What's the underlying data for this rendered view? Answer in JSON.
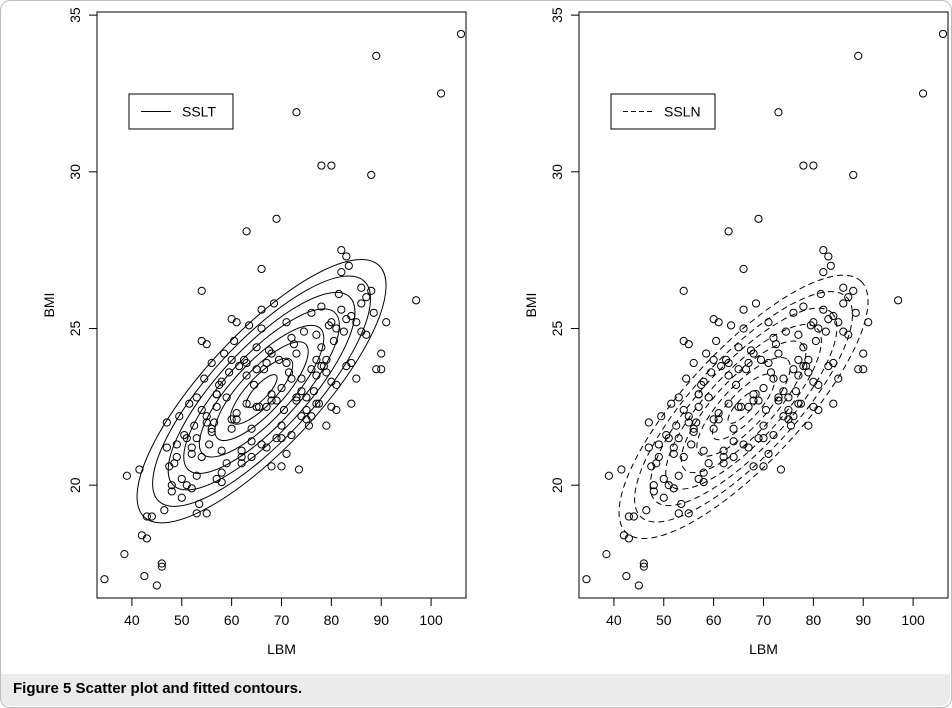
{
  "caption": "Figure 5 Scatter plot and fitted contours.",
  "colors": {
    "ink": "#000000",
    "caption_bg": "#ebebeb",
    "frame": "#bdbdbd"
  },
  "chart_data": [
    {
      "type": "scatter",
      "title": "",
      "xlabel": "LBM",
      "ylabel": "BMI",
      "xlim": [
        33,
        107
      ],
      "ylim": [
        16.4,
        35.1
      ],
      "xticks": [
        "40",
        "50",
        "60",
        "70",
        "80",
        "90",
        "100"
      ],
      "yticks": [
        "20",
        "25",
        "30",
        "35"
      ],
      "legend": {
        "label": "SSLT",
        "line_style": "solid",
        "placement": "top-left"
      },
      "contour_line_style": "solid",
      "contour_center": [
        66,
        23.0
      ],
      "contour_levels": 8,
      "grid": false
    },
    {
      "type": "scatter",
      "title": "",
      "xlabel": "LBM",
      "ylabel": "BMI",
      "xlim": [
        33,
        107
      ],
      "ylim": [
        16.4,
        35.1
      ],
      "xticks": [
        "40",
        "50",
        "60",
        "70",
        "80",
        "90",
        "100"
      ],
      "yticks": [
        "20",
        "25",
        "30",
        "35"
      ],
      "legend": {
        "label": "SSLN",
        "line_style": "dashed",
        "placement": "top-left"
      },
      "contour_line_style": "dashed",
      "contour_center": [
        66,
        22.5
      ],
      "contour_levels": 8,
      "grid": false
    }
  ],
  "points": {
    "x": [
      34.5,
      38.5,
      39,
      41.5,
      42,
      42.5,
      43,
      45,
      46,
      46.5,
      47,
      47.5,
      48,
      48.5,
      49,
      49.5,
      50,
      50.5,
      51,
      51.5,
      52,
      52.5,
      53,
      53.5,
      54,
      54.5,
      55,
      55.5,
      56,
      56.5,
      57,
      57.5,
      58,
      58.5,
      59,
      59.5,
      60,
      60.5,
      61,
      61.5,
      62,
      62.5,
      63,
      63.5,
      64,
      64.5,
      65,
      65.5,
      66,
      66.5,
      67,
      67.5,
      68,
      68.5,
      69,
      69.5,
      70,
      70.5,
      71,
      71.5,
      72,
      72.5,
      73,
      73.5,
      74,
      74.5,
      75,
      75.5,
      76,
      76.5,
      77,
      77.5,
      78,
      78.5,
      79,
      79.5,
      80,
      80.5,
      81,
      81.5,
      82,
      82.5,
      83,
      83.5,
      84,
      85,
      86,
      87,
      88,
      88.5,
      89,
      90,
      91,
      97,
      102,
      106,
      73,
      78,
      80,
      88,
      89,
      63,
      69,
      54,
      55,
      47,
      52,
      53,
      53,
      54,
      56,
      57,
      58,
      60,
      61,
      63,
      64,
      66,
      67,
      68,
      70,
      72,
      74,
      76,
      77,
      79,
      81,
      82,
      83,
      85,
      86,
      49,
      51,
      55,
      58,
      62,
      65,
      68,
      71,
      73,
      75,
      78,
      80,
      82,
      84,
      50,
      53,
      57,
      60,
      64,
      67,
      70,
      72,
      75,
      77,
      79,
      83,
      86,
      48,
      52,
      56,
      59,
      63,
      66,
      69,
      74,
      78,
      81,
      84,
      87,
      55,
      58,
      61,
      65,
      68,
      71,
      76,
      80,
      90,
      57,
      62,
      66,
      70,
      73,
      77,
      46,
      54,
      60,
      44,
      43
    ],
    "y": [
      17.0,
      17.8,
      20.3,
      20.5,
      18.4,
      17.1,
      19.0,
      16.8,
      17.5,
      19.2,
      21.2,
      20.6,
      19.8,
      20.7,
      21.3,
      22.2,
      20.2,
      21.6,
      20.0,
      22.6,
      21.0,
      21.9,
      22.8,
      19.4,
      22.4,
      23.4,
      22.0,
      21.3,
      23.9,
      22.0,
      22.9,
      23.2,
      20.4,
      24.2,
      22.8,
      23.6,
      21.8,
      24.6,
      22.3,
      23.8,
      20.9,
      24.0,
      22.6,
      25.1,
      21.8,
      23.2,
      24.4,
      22.5,
      25.0,
      23.7,
      21.2,
      24.3,
      22.9,
      25.8,
      21.5,
      24.0,
      23.1,
      22.4,
      25.2,
      23.6,
      21.6,
      24.5,
      22.8,
      20.5,
      23.4,
      24.9,
      22.4,
      21.9,
      25.5,
      23.0,
      24.0,
      22.6,
      25.7,
      23.8,
      21.9,
      25.1,
      23.3,
      24.6,
      22.4,
      26.1,
      27.5,
      24.9,
      25.3,
      27.0,
      23.9,
      25.2,
      26.3,
      24.8,
      26.2,
      25.5,
      23.7,
      24.2,
      25.2,
      25.9,
      32.5,
      34.4,
      31.9,
      30.2,
      30.2,
      29.9,
      33.7,
      28.1,
      28.5,
      26.2,
      24.5,
      22.0,
      19.9,
      19.1,
      21.5,
      20.9,
      21.8,
      22.5,
      23.3,
      24.0,
      22.1,
      23.5,
      20.9,
      25.6,
      23.9,
      22.7,
      21.9,
      24.7,
      23.0,
      22.2,
      24.8,
      23.6,
      25.0,
      26.8,
      27.3,
      23.4,
      25.8,
      20.9,
      21.5,
      22.2,
      20.1,
      21.1,
      23.7,
      24.2,
      21.0,
      24.2,
      22.1,
      23.8,
      25.2,
      25.6,
      22.6,
      19.6,
      20.3,
      22.9,
      22.1,
      21.4,
      22.5,
      20.6,
      23.4,
      22.8,
      23.5,
      24.0,
      23.8,
      24.9,
      20.0,
      21.2,
      21.7,
      20.7,
      23.9,
      21.3,
      22.7,
      22.2,
      24.4,
      23.2,
      25.4,
      26.0,
      19.1,
      21.1,
      25.2,
      22.5,
      20.6,
      23.9,
      23.7,
      22.5,
      23.7,
      20.2,
      20.7,
      26.9,
      21.5,
      22.7,
      22.6,
      17.4,
      24.6,
      25.3,
      19.0,
      18.3
    ]
  }
}
